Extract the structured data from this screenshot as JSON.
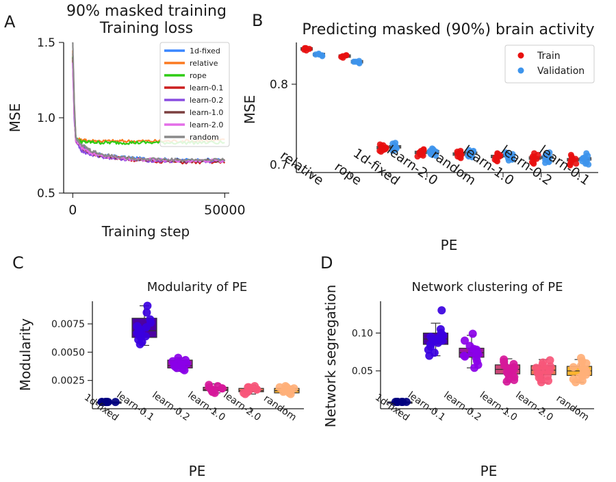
{
  "panel_letters": {
    "a": "A",
    "b": "B",
    "c": "C",
    "d": "D"
  },
  "colors": {
    "1d-fixed": "#3a86ff",
    "relative": "#fb7a21",
    "rope": "#2ecc14",
    "learn-0.1": "#cc1f1f",
    "learn-0.2": "#8a4de0",
    "learn-1.0": "#7b3f3f",
    "learn-2.0": "#e46ee8",
    "random": "#8a8a8a",
    "train": "#e8100f",
    "validation": "#3d94ec",
    "box_edge": "#555555"
  },
  "chart_data": [
    {
      "id": "A",
      "type": "line",
      "suptitle": "90% masked training",
      "title": "Training loss",
      "xlabel": "Training step",
      "ylabel": "MSE",
      "xlim": [
        -3000,
        51500
      ],
      "ylim": [
        0.5,
        1.5
      ],
      "xticks": [
        0,
        50000
      ],
      "xtick_labels": [
        "0",
        "50000"
      ],
      "yticks": [
        0.5,
        1.0,
        1.5
      ],
      "ytick_labels": [
        "0.5",
        "1.0",
        "1.5"
      ],
      "legend_position": "top-right",
      "series": [
        {
          "name": "1d-fixed",
          "values": [
            [
              0,
              1.42
            ],
            [
              500,
              1.05
            ],
            [
              1000,
              0.86
            ],
            [
              3000,
              0.81
            ],
            [
              6000,
              0.77
            ],
            [
              10000,
              0.75
            ],
            [
              20000,
              0.73
            ],
            [
              35000,
              0.72
            ],
            [
              50000,
              0.72
            ]
          ]
        },
        {
          "name": "relative",
          "values": [
            [
              0,
              1.44
            ],
            [
              500,
              1.08
            ],
            [
              1000,
              0.86
            ],
            [
              3000,
              0.85
            ],
            [
              10000,
              0.845
            ],
            [
              30000,
              0.845
            ],
            [
              50000,
              0.85
            ]
          ]
        },
        {
          "name": "rope",
          "values": [
            [
              0,
              1.4
            ],
            [
              500,
              1.06
            ],
            [
              1000,
              0.86
            ],
            [
              3000,
              0.84
            ],
            [
              10000,
              0.835
            ],
            [
              30000,
              0.835
            ],
            [
              50000,
              0.835
            ]
          ]
        },
        {
          "name": "learn-0.1",
          "values": [
            [
              0,
              1.38
            ],
            [
              500,
              1.02
            ],
            [
              1000,
              0.85
            ],
            [
              3000,
              0.8
            ],
            [
              6000,
              0.765
            ],
            [
              10000,
              0.745
            ],
            [
              20000,
              0.72
            ],
            [
              35000,
              0.705
            ],
            [
              50000,
              0.705
            ]
          ]
        },
        {
          "name": "learn-0.2",
          "values": [
            [
              0,
              1.36
            ],
            [
              500,
              1.0
            ],
            [
              1000,
              0.85
            ],
            [
              3000,
              0.78
            ],
            [
              6000,
              0.755
            ],
            [
              10000,
              0.74
            ],
            [
              20000,
              0.72
            ],
            [
              35000,
              0.71
            ],
            [
              50000,
              0.71
            ]
          ]
        },
        {
          "name": "learn-1.0",
          "values": [
            [
              0,
              1.4
            ],
            [
              500,
              1.04
            ],
            [
              1000,
              0.86
            ],
            [
              3000,
              0.8
            ],
            [
              6000,
              0.765
            ],
            [
              10000,
              0.745
            ],
            [
              20000,
              0.725
            ],
            [
              35000,
              0.715
            ],
            [
              50000,
              0.715
            ]
          ]
        },
        {
          "name": "learn-2.0",
          "values": [
            [
              0,
              1.37
            ],
            [
              500,
              1.02
            ],
            [
              1000,
              0.85
            ],
            [
              3000,
              0.8
            ],
            [
              6000,
              0.765
            ],
            [
              10000,
              0.745
            ],
            [
              20000,
              0.725
            ],
            [
              35000,
              0.715
            ],
            [
              50000,
              0.715
            ]
          ]
        },
        {
          "name": "random",
          "values": [
            [
              0,
              1.5
            ],
            [
              500,
              1.1
            ],
            [
              1000,
              0.87
            ],
            [
              3000,
              0.82
            ],
            [
              6000,
              0.78
            ],
            [
              10000,
              0.755
            ],
            [
              20000,
              0.73
            ],
            [
              35000,
              0.72
            ],
            [
              50000,
              0.72
            ]
          ]
        }
      ]
    },
    {
      "id": "B",
      "type": "scatter",
      "title": "Predicting masked (90%) brain activity",
      "xlabel": "PE",
      "ylabel": "MSE",
      "ylim": [
        0.69,
        0.852
      ],
      "yticks": [
        0.7,
        0.8
      ],
      "ytick_labels": [
        "0.7",
        "0.8"
      ],
      "categories": [
        "relative",
        "rope",
        "1d-fixed",
        "learn-2.0",
        "random",
        "learn-1.0",
        "learn-0.2",
        "learn-0.1"
      ],
      "legend_position": "top-right",
      "series": [
        {
          "name": "Train",
          "values": [
            [
              0.845,
              0.843,
              0.844,
              0.842,
              0.845
            ],
            [
              0.836,
              0.834,
              0.835,
              0.833,
              0.836
            ],
            [
              0.722,
              0.719,
              0.724,
              0.717,
              0.721,
              0.725,
              0.718,
              0.723,
              0.72,
              0.716
            ],
            [
              0.716,
              0.713,
              0.718,
              0.711,
              0.715,
              0.719,
              0.712,
              0.717,
              0.714,
              0.71
            ],
            [
              0.714,
              0.711,
              0.716,
              0.709,
              0.713,
              0.717,
              0.71,
              0.715,
              0.712,
              0.708
            ],
            [
              0.711,
              0.707,
              0.713,
              0.705,
              0.71,
              0.714,
              0.706,
              0.712,
              0.709,
              0.704
            ],
            [
              0.709,
              0.705,
              0.712,
              0.702,
              0.708,
              0.714,
              0.703,
              0.71,
              0.707,
              0.701
            ],
            [
              0.707,
              0.703,
              0.71,
              0.7,
              0.706,
              0.712,
              0.701,
              0.708,
              0.705,
              0.699
            ]
          ]
        },
        {
          "name": "Validation",
          "values": [
            [
              0.837,
              0.835,
              0.838,
              0.836,
              0.837
            ],
            [
              0.828,
              0.826,
              0.829,
              0.827,
              0.828
            ],
            [
              0.723,
              0.72,
              0.726,
              0.718,
              0.722,
              0.727,
              0.719,
              0.724,
              0.721,
              0.717
            ],
            [
              0.717,
              0.714,
              0.719,
              0.712,
              0.716,
              0.72,
              0.713,
              0.718,
              0.715,
              0.711
            ],
            [
              0.715,
              0.712,
              0.717,
              0.71,
              0.714,
              0.718,
              0.711,
              0.716,
              0.713,
              0.709
            ],
            [
              0.712,
              0.708,
              0.714,
              0.706,
              0.711,
              0.715,
              0.707,
              0.713,
              0.71,
              0.705
            ],
            [
              0.71,
              0.706,
              0.713,
              0.703,
              0.709,
              0.715,
              0.704,
              0.711,
              0.708,
              0.702
            ],
            [
              0.708,
              0.704,
              0.711,
              0.701,
              0.707,
              0.714,
              0.702,
              0.709,
              0.706,
              0.7
            ]
          ]
        }
      ],
      "box_medians": {
        "Train": [
          0.844,
          0.835,
          0.721,
          0.715,
          0.713,
          0.71,
          0.708,
          0.706
        ],
        "Validation": [
          0.837,
          0.828,
          0.722,
          0.716,
          0.714,
          0.711,
          0.709,
          0.707
        ]
      }
    },
    {
      "id": "C",
      "type": "box",
      "title": "Modularity of PE",
      "xlabel": "PE",
      "ylabel": "Modularity",
      "ylim": [
        0.0,
        0.0095
      ],
      "yticks": [
        0.0025,
        0.005,
        0.0075
      ],
      "ytick_labels": [
        "0.0025",
        "0.0050",
        "0.0075"
      ],
      "categories": [
        "1d-fixed",
        "learn-0.1",
        "learn-0.2",
        "learn-1.0",
        "learn-2.0",
        "random"
      ],
      "box_colors": [
        "#0d0887",
        "#4c02a1",
        "#9c179e",
        "#cc4778",
        "#ed7953",
        "#fdb42f"
      ],
      "point_colors": [
        "#000080",
        "#3a00e0",
        "#8a00e8",
        "#d6189a",
        "#f7567a",
        "#ffb07a"
      ],
      "boxes": [
        {
          "q1": 0.0006,
          "median": 0.0006,
          "q3": 0.0006,
          "whisker_low": 0.0006,
          "whisker_high": 0.0006
        },
        {
          "q1": 0.0063,
          "median": 0.0069,
          "q3": 0.008,
          "whisker_low": 0.0056,
          "whisker_high": 0.0091
        },
        {
          "q1": 0.0036,
          "median": 0.0038,
          "q3": 0.0043,
          "whisker_low": 0.0033,
          "whisker_high": 0.0045
        },
        {
          "q1": 0.0016,
          "median": 0.0017,
          "q3": 0.0019,
          "whisker_low": 0.0014,
          "whisker_high": 0.0022
        },
        {
          "q1": 0.0015,
          "median": 0.0016,
          "q3": 0.0018,
          "whisker_low": 0.0013,
          "whisker_high": 0.0021
        },
        {
          "q1": 0.0014,
          "median": 0.0016,
          "q3": 0.0018,
          "whisker_low": 0.0013,
          "whisker_high": 0.002
        }
      ],
      "points": [
        [
          0.0006,
          0.0006,
          0.0006,
          0.0006,
          0.0006,
          0.0006,
          0.0006,
          0.0006
        ],
        [
          0.0091,
          0.0085,
          0.0079,
          0.0076,
          0.0073,
          0.0071,
          0.0069,
          0.0067,
          0.0065,
          0.0063,
          0.0061,
          0.0059,
          0.0057,
          0.0072,
          0.0068,
          0.0064
        ],
        [
          0.0045,
          0.0043,
          0.0041,
          0.0039,
          0.0038,
          0.0037,
          0.0036,
          0.0035,
          0.0034,
          0.004,
          0.0042
        ],
        [
          0.0021,
          0.0019,
          0.0018,
          0.0017,
          0.0017,
          0.0016,
          0.0015,
          0.0015,
          0.0014,
          0.002,
          0.0018
        ],
        [
          0.002,
          0.0019,
          0.0018,
          0.0017,
          0.0016,
          0.0016,
          0.0015,
          0.0014,
          0.0013,
          0.0019,
          0.0017
        ],
        [
          0.002,
          0.0019,
          0.0018,
          0.0017,
          0.0016,
          0.0016,
          0.0015,
          0.0014,
          0.0013,
          0.0019,
          0.0017
        ]
      ]
    },
    {
      "id": "D",
      "type": "box",
      "title": "Network clustering of PE",
      "xlabel": "PE",
      "ylabel": "Network segregation",
      "ylim": [
        0.0,
        0.142
      ],
      "yticks": [
        0.05,
        0.1
      ],
      "ytick_labels": [
        "0.05",
        "0.10"
      ],
      "categories": [
        "1d-fixed",
        "learn-0.1",
        "learn-0.2",
        "learn-1.0",
        "learn-2.0",
        "random"
      ],
      "box_colors": [
        "#0d0887",
        "#4c02a1",
        "#9c179e",
        "#cc4778",
        "#ed7953",
        "#fdb42f"
      ],
      "point_colors": [
        "#000080",
        "#3a00e0",
        "#8a00e8",
        "#d6189a",
        "#f7567a",
        "#ffb07a"
      ],
      "boxes": [
        {
          "q1": 0.009,
          "median": 0.009,
          "q3": 0.009,
          "whisker_low": 0.009,
          "whisker_high": 0.009
        },
        {
          "q1": 0.085,
          "median": 0.092,
          "q3": 0.1,
          "whisker_low": 0.07,
          "whisker_high": 0.113
        },
        {
          "q1": 0.068,
          "median": 0.074,
          "q3": 0.08,
          "whisker_low": 0.054,
          "whisker_high": 0.097
        },
        {
          "q1": 0.046,
          "median": 0.052,
          "q3": 0.058,
          "whisker_low": 0.035,
          "whisker_high": 0.066
        },
        {
          "q1": 0.045,
          "median": 0.051,
          "q3": 0.057,
          "whisker_low": 0.034,
          "whisker_high": 0.065
        },
        {
          "q1": 0.044,
          "median": 0.05,
          "q3": 0.056,
          "whisker_low": 0.035,
          "whisker_high": 0.065
        }
      ],
      "points": [
        [
          0.009,
          0.009,
          0.009,
          0.009,
          0.009,
          0.009,
          0.009,
          0.009
        ],
        [
          0.13,
          0.105,
          0.1,
          0.097,
          0.094,
          0.092,
          0.09,
          0.088,
          0.085,
          0.082,
          0.078,
          0.074,
          0.07,
          0.095,
          0.087
        ],
        [
          0.099,
          0.09,
          0.083,
          0.079,
          0.076,
          0.074,
          0.072,
          0.07,
          0.067,
          0.063,
          0.058,
          0.054,
          0.078,
          0.069
        ],
        [
          0.065,
          0.062,
          0.059,
          0.057,
          0.055,
          0.053,
          0.052,
          0.05,
          0.048,
          0.046,
          0.044,
          0.042,
          0.04,
          0.038,
          0.036
        ],
        [
          0.064,
          0.061,
          0.058,
          0.056,
          0.054,
          0.052,
          0.051,
          0.049,
          0.047,
          0.045,
          0.043,
          0.041,
          0.039,
          0.037,
          0.035
        ],
        [
          0.067,
          0.063,
          0.06,
          0.057,
          0.055,
          0.053,
          0.051,
          0.049,
          0.047,
          0.045,
          0.043,
          0.041,
          0.039,
          0.037,
          0.035
        ]
      ]
    }
  ]
}
